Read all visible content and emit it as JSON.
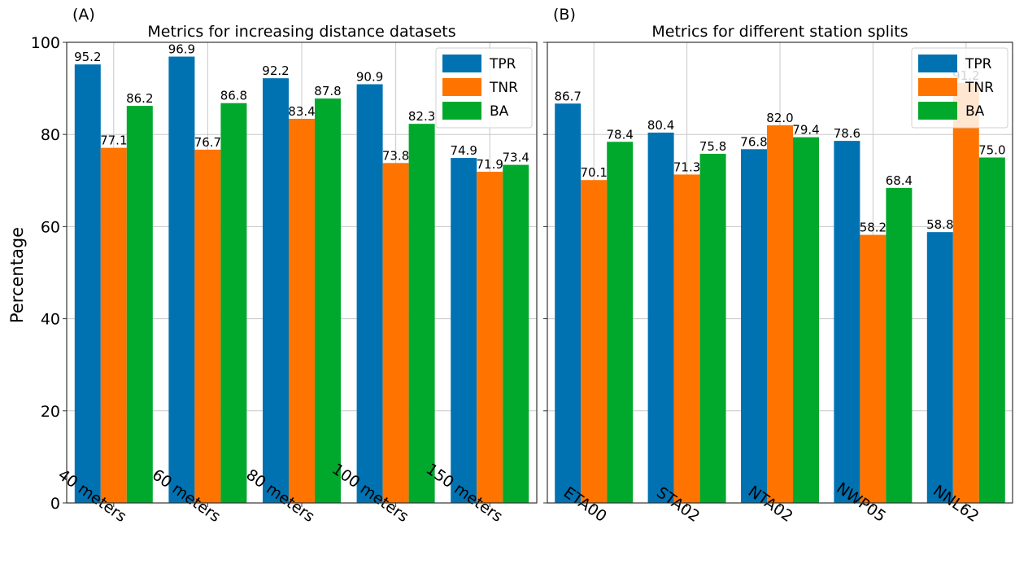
{
  "chart_data": [
    {
      "type": "bar",
      "panel_label": "(A)",
      "title": "Metrics for increasing distance datasets",
      "xlabel": "",
      "ylabel": "Percentage",
      "ylim": [
        0,
        100
      ],
      "yticks": [
        0,
        20,
        40,
        60,
        80,
        100
      ],
      "grid": true,
      "legend_position": "top-right",
      "categories": [
        "40 meters",
        "60 meters",
        "80 meters",
        "100 meters",
        "150 meters"
      ],
      "series": [
        {
          "name": "TPR",
          "color": "#0072b2",
          "values": [
            95.2,
            96.9,
            92.2,
            90.9,
            74.9
          ]
        },
        {
          "name": "TNR",
          "color": "#ff7400",
          "values": [
            77.1,
            76.7,
            83.4,
            73.8,
            71.9
          ]
        },
        {
          "name": "BA",
          "color": "#00a92b",
          "values": [
            86.2,
            86.8,
            87.8,
            82.3,
            73.4
          ]
        }
      ]
    },
    {
      "type": "bar",
      "panel_label": "(B)",
      "title": "Metrics for different station splits",
      "xlabel": "",
      "ylabel": "",
      "ylim": [
        0,
        100
      ],
      "yticks": [
        0,
        20,
        40,
        60,
        80,
        100
      ],
      "grid": true,
      "legend_position": "top-right",
      "categories": [
        "ETA00",
        "STA02",
        "NTA02",
        "NWP05",
        "NNL62"
      ],
      "series": [
        {
          "name": "TPR",
          "color": "#0072b2",
          "values": [
            86.7,
            80.4,
            76.8,
            78.6,
            58.8
          ]
        },
        {
          "name": "TNR",
          "color": "#ff7400",
          "values": [
            70.1,
            71.3,
            82.0,
            58.2,
            91.2
          ]
        },
        {
          "name": "BA",
          "color": "#00a92b",
          "values": [
            78.4,
            75.8,
            79.4,
            68.4,
            75.0
          ]
        }
      ]
    }
  ]
}
